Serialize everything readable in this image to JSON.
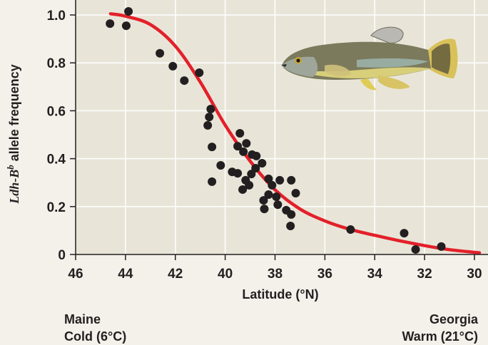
{
  "chart_data": {
    "type": "scatter",
    "title": "",
    "xlabel": "Latitude (°N)",
    "ylabel": {
      "gene": "Ldh-B",
      "superscript": "b",
      "rest": " allele frequency"
    },
    "xlim": [
      46,
      30
    ],
    "x_reversed": true,
    "ylim": [
      0,
      1.0
    ],
    "xticks": [
      46,
      44,
      42,
      40,
      38,
      36,
      34,
      32,
      30
    ],
    "yticks": [
      0,
      0.2,
      0.4,
      0.6,
      0.8,
      1.0
    ],
    "ytick_labels": [
      "0",
      "0.2",
      "0.4",
      "0.6",
      "0.8",
      "1.0"
    ],
    "grid": true,
    "colors": {
      "points": "#231f20",
      "curve": "#e3202a",
      "plot_bg": "#e8e5d8",
      "grid": "#ffffff"
    },
    "points": [
      [
        44.62,
        0.964
      ],
      [
        43.88,
        1.015
      ],
      [
        43.97,
        0.955
      ],
      [
        42.62,
        0.84
      ],
      [
        42.1,
        0.786
      ],
      [
        41.64,
        0.726
      ],
      [
        41.04,
        0.759
      ],
      [
        40.58,
        0.607
      ],
      [
        40.64,
        0.574
      ],
      [
        40.7,
        0.539
      ],
      [
        40.53,
        0.449
      ],
      [
        40.53,
        0.304
      ],
      [
        39.41,
        0.506
      ],
      [
        39.5,
        0.452
      ],
      [
        39.15,
        0.464
      ],
      [
        39.27,
        0.429
      ],
      [
        38.92,
        0.417
      ],
      [
        38.75,
        0.411
      ],
      [
        38.52,
        0.381
      ],
      [
        38.78,
        0.36
      ],
      [
        40.18,
        0.372
      ],
      [
        39.72,
        0.345
      ],
      [
        39.5,
        0.339
      ],
      [
        38.95,
        0.336
      ],
      [
        39.18,
        0.31
      ],
      [
        39.04,
        0.289
      ],
      [
        39.3,
        0.271
      ],
      [
        38.26,
        0.316
      ],
      [
        38.12,
        0.289
      ],
      [
        37.81,
        0.31
      ],
      [
        37.35,
        0.31
      ],
      [
        37.17,
        0.256
      ],
      [
        38.26,
        0.25
      ],
      [
        38.46,
        0.226
      ],
      [
        37.95,
        0.241
      ],
      [
        37.89,
        0.208
      ],
      [
        38.43,
        0.19
      ],
      [
        37.55,
        0.185
      ],
      [
        37.35,
        0.167
      ],
      [
        37.38,
        0.119
      ],
      [
        34.97,
        0.104
      ],
      [
        32.82,
        0.089
      ],
      [
        32.36,
        0.021
      ],
      [
        31.33,
        0.033
      ]
    ],
    "fit_curve": [
      [
        44.6,
        1.005
      ],
      [
        44,
        0.995
      ],
      [
        43,
        0.96
      ],
      [
        42,
        0.87
      ],
      [
        41,
        0.72
      ],
      [
        40,
        0.54
      ],
      [
        39,
        0.39
      ],
      [
        38,
        0.27
      ],
      [
        37,
        0.19
      ],
      [
        36,
        0.14
      ],
      [
        35,
        0.105
      ],
      [
        34,
        0.08
      ],
      [
        33,
        0.057
      ],
      [
        32,
        0.037
      ],
      [
        31,
        0.02
      ],
      [
        29.8,
        0.007
      ]
    ],
    "annotations": {
      "left": {
        "line1": "Maine",
        "line2": "Cold (6°C)"
      },
      "right": {
        "line1": "Georgia",
        "line2": "Warm (21°C)"
      }
    },
    "illustration": "killifish"
  }
}
